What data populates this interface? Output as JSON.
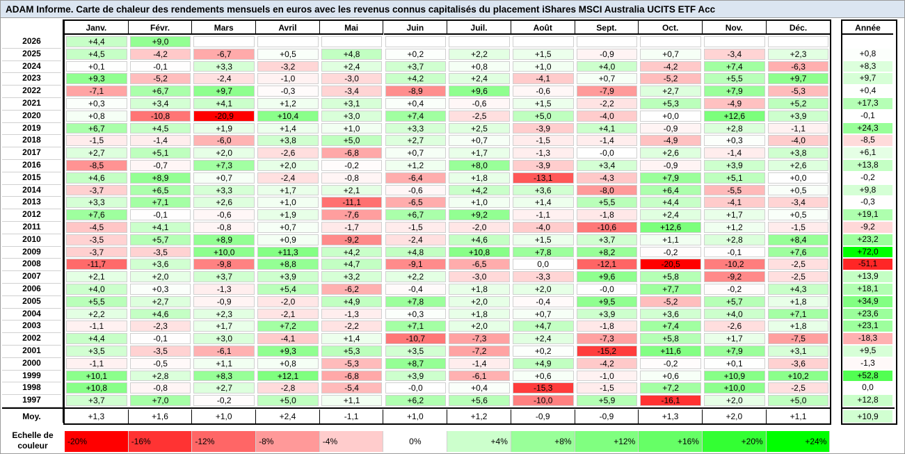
{
  "title": "ADAM Informe. Carte de chaleur des rendements mensuels en euros avec les revenus connus capitalisés du placement iShares MSCI Australia UCITS ETF Acc",
  "chart_data": {
    "type": "heatmap",
    "columns": [
      "Janv.",
      "Févr.",
      "Mars",
      "Avril",
      "Mai",
      "Juin",
      "Juil.",
      "Août",
      "Sept.",
      "Oct.",
      "Nov.",
      "Déc."
    ],
    "annual_header": "Année",
    "rows": [
      {
        "year": "2026",
        "months": [
          "+4,4",
          "+9,0",
          "",
          "",
          "",
          "",
          "",
          "",
          "",
          "",
          "",
          ""
        ],
        "annual": ""
      },
      {
        "year": "2025",
        "months": [
          "+4,5",
          "-4,2",
          "-6,7",
          "+0,5",
          "+4,8",
          "+0,2",
          "+2,2",
          "+1,5",
          "-0,9",
          "+0,7",
          "-3,4",
          "+2,3"
        ],
        "annual": "+0,8"
      },
      {
        "year": "2024",
        "months": [
          "+0,1",
          "-0,1",
          "+3,3",
          "-3,2",
          "+2,4",
          "+3,7",
          "+0,8",
          "+1,0",
          "+4,0",
          "-4,2",
          "+7,4",
          "-6,3"
        ],
        "annual": "+8,3"
      },
      {
        "year": "2023",
        "months": [
          "+9,3",
          "-5,2",
          "-2,4",
          "-1,0",
          "-3,0",
          "+4,2",
          "+2,4",
          "-4,1",
          "+0,7",
          "-5,2",
          "+5,5",
          "+9,7"
        ],
        "annual": "+9,7"
      },
      {
        "year": "2022",
        "months": [
          "-7,1",
          "+6,7",
          "+9,7",
          "-0,3",
          "-3,4",
          "-8,9",
          "+9,6",
          "-0,6",
          "-7,9",
          "+2,7",
          "+7,9",
          "-5,3"
        ],
        "annual": "+0,4"
      },
      {
        "year": "2021",
        "months": [
          "+0,3",
          "+3,4",
          "+4,1",
          "+1,2",
          "+3,1",
          "+0,4",
          "-0,6",
          "+1,5",
          "-2,2",
          "+5,3",
          "-4,9",
          "+5,2"
        ],
        "annual": "+17,3"
      },
      {
        "year": "2020",
        "months": [
          "+0,8",
          "-10,8",
          "-20,9",
          "+10,4",
          "+3,0",
          "+7,4",
          "-2,5",
          "+5,0",
          "-4,0",
          "+0,0",
          "+12,6",
          "+3,9"
        ],
        "annual": "-0,1"
      },
      {
        "year": "2019",
        "months": [
          "+6,7",
          "+4,5",
          "+1,9",
          "+1,4",
          "+1,0",
          "+3,3",
          "+2,5",
          "-3,9",
          "+4,1",
          "-0,9",
          "+2,8",
          "-1,1"
        ],
        "annual": "+24,3"
      },
      {
        "year": "2018",
        "months": [
          "-1,5",
          "-1,4",
          "-6,0",
          "+3,8",
          "+5,0",
          "+2,7",
          "+0,7",
          "-1,5",
          "-1,4",
          "-4,9",
          "+0,3",
          "-4,0"
        ],
        "annual": "-8,5"
      },
      {
        "year": "2017",
        "months": [
          "+2,7",
          "+5,1",
          "+2,0",
          "-2,6",
          "-6,8",
          "+0,7",
          "+1,7",
          "-1,3",
          "-0,0",
          "+2,6",
          "-1,4",
          "+3,8"
        ],
        "annual": "+6,1"
      },
      {
        "year": "2016",
        "months": [
          "-8,5",
          "-0,7",
          "+7,3",
          "+2,0",
          "-0,2",
          "+1,2",
          "+8,0",
          "-3,9",
          "+3,4",
          "-0,9",
          "+3,9",
          "+2,6"
        ],
        "annual": "+13,8"
      },
      {
        "year": "2015",
        "months": [
          "+4,6",
          "+8,9",
          "+0,7",
          "-2,4",
          "-0,8",
          "-6,4",
          "+1,8",
          "-13,1",
          "-4,3",
          "+7,9",
          "+5,1",
          "+0,0"
        ],
        "annual": "-0,2"
      },
      {
        "year": "2014",
        "months": [
          "-3,7",
          "+6,5",
          "+3,3",
          "+1,7",
          "+2,1",
          "-0,6",
          "+4,2",
          "+3,6",
          "-8,0",
          "+6,4",
          "-5,5",
          "+0,5"
        ],
        "annual": "+9,8"
      },
      {
        "year": "2013",
        "months": [
          "+3,3",
          "+7,1",
          "+2,6",
          "+1,0",
          "-11,1",
          "-6,5",
          "+1,0",
          "+1,4",
          "+5,5",
          "+4,4",
          "-4,1",
          "-3,4"
        ],
        "annual": "-0,3"
      },
      {
        "year": "2012",
        "months": [
          "+7,6",
          "-0,1",
          "-0,6",
          "+1,9",
          "-7,6",
          "+6,7",
          "+9,2",
          "-1,1",
          "-1,8",
          "+2,4",
          "+1,7",
          "+0,5"
        ],
        "annual": "+19,1"
      },
      {
        "year": "2011",
        "months": [
          "-4,5",
          "+4,1",
          "-0,8",
          "+0,7",
          "-1,7",
          "-1,5",
          "-2,0",
          "-4,0",
          "-10,6",
          "+12,6",
          "+1,2",
          "-1,5"
        ],
        "annual": "-9,2"
      },
      {
        "year": "2010",
        "months": [
          "-3,5",
          "+5,7",
          "+8,9",
          "+0,9",
          "-9,2",
          "-2,4",
          "+4,6",
          "+1,5",
          "+3,7",
          "+1,1",
          "+2,8",
          "+8,4"
        ],
        "annual": "+23,2"
      },
      {
        "year": "2009",
        "months": [
          "-3,7",
          "-3,5",
          "+10,0",
          "+11,3",
          "+4,2",
          "+4,8",
          "+10,8",
          "+7,8",
          "+8,2",
          "-0,2",
          "-0,1",
          "+7,6"
        ],
        "annual": "+72,0"
      },
      {
        "year": "2008",
        "months": [
          "-11,7",
          "+3,6",
          "-9,8",
          "+8,8",
          "+4,7",
          "-9,1",
          "-6,5",
          "0,0",
          "-12,1",
          "-20,5",
          "-10,2",
          "-2,5"
        ],
        "annual": "-51,1"
      },
      {
        "year": "2007",
        "months": [
          "+2,1",
          "+2,0",
          "+3,7",
          "+3,9",
          "+3,2",
          "+2,2",
          "-3,0",
          "-3,3",
          "+9,6",
          "+5,8",
          "-9,2",
          "-2,5"
        ],
        "annual": "+13,9"
      },
      {
        "year": "2006",
        "months": [
          "+4,0",
          "+0,3",
          "-1,3",
          "+5,4",
          "-6,2",
          "-0,4",
          "+1,8",
          "+2,0",
          "-0,0",
          "+7,7",
          "-0,2",
          "+4,3"
        ],
        "annual": "+18,1"
      },
      {
        "year": "2005",
        "months": [
          "+5,5",
          "+2,7",
          "-0,9",
          "-2,0",
          "+4,9",
          "+7,8",
          "+2,0",
          "-0,4",
          "+9,5",
          "-5,2",
          "+5,7",
          "+1,8"
        ],
        "annual": "+34,9"
      },
      {
        "year": "2004",
        "months": [
          "+2,2",
          "+4,6",
          "+2,3",
          "-2,1",
          "-1,3",
          "+0,3",
          "+1,8",
          "+0,7",
          "+3,9",
          "+3,6",
          "+4,0",
          "+7,1"
        ],
        "annual": "+23,6"
      },
      {
        "year": "2003",
        "months": [
          "-1,1",
          "-2,3",
          "+1,7",
          "+7,2",
          "-2,2",
          "+7,1",
          "+2,0",
          "+4,7",
          "-1,8",
          "+7,4",
          "-2,6",
          "+1,8"
        ],
        "annual": "+23,1"
      },
      {
        "year": "2002",
        "months": [
          "+4,4",
          "-0,1",
          "+3,0",
          "-4,1",
          "+1,4",
          "-10,7",
          "-7,3",
          "+2,4",
          "-7,3",
          "+5,8",
          "+1,7",
          "-7,5"
        ],
        "annual": "-18,3"
      },
      {
        "year": "2001",
        "months": [
          "+3,5",
          "-3,5",
          "-6,1",
          "+9,3",
          "+5,3",
          "+3,5",
          "-7,2",
          "+0,2",
          "-15,2",
          "+11,6",
          "+7,9",
          "+3,1"
        ],
        "annual": "+9,5"
      },
      {
        "year": "2000",
        "months": [
          "-1,1",
          "-0,5",
          "+1,1",
          "+0,8",
          "-5,3",
          "+8,7",
          "-1,4",
          "+4,9",
          "-4,2",
          "-0,2",
          "+0,1",
          "-3,6"
        ],
        "annual": "-1,3"
      },
      {
        "year": "1999",
        "months": [
          "+10,1",
          "+2,8",
          "+8,3",
          "+12,1",
          "-6,8",
          "+3,9",
          "-6,1",
          "+0,6",
          "-1,0",
          "+0,6",
          "+10,9",
          "+10,2"
        ],
        "annual": "+52,8"
      },
      {
        "year": "1998",
        "months": [
          "+10,8",
          "-0,8",
          "+2,7",
          "-2,8",
          "-5,4",
          "-0,0",
          "+0,4",
          "-15,3",
          "-1,5",
          "+7,2",
          "+10,0",
          "-2,5"
        ],
        "annual": "0,0"
      },
      {
        "year": "1997",
        "months": [
          "+3,7",
          "+7,0",
          "-0,2",
          "+5,0",
          "+1,1",
          "+6,2",
          "+5,6",
          "-10,0",
          "+5,9",
          "-16,1",
          "+2,0",
          "+5,0"
        ],
        "annual": "+12,8"
      }
    ],
    "average_row": {
      "label": "Moy.",
      "months": [
        "+1,3",
        "+1,6",
        "+1,0",
        "+2,4",
        "-1,1",
        "+1,0",
        "+1,2",
        "-0,9",
        "-0,9",
        "+1,3",
        "+2,0",
        "+1,1"
      ],
      "annual": "+10,9"
    },
    "color_scale": {
      "label": "Echelle de couleur",
      "steps": [
        {
          "label": "-20%",
          "value": -20,
          "color": "#ff0000"
        },
        {
          "label": "-16%",
          "value": -16,
          "color": "#ff3333"
        },
        {
          "label": "-12%",
          "value": -12,
          "color": "#ff6666"
        },
        {
          "label": "-8%",
          "value": -8,
          "color": "#ff9999"
        },
        {
          "label": "-4%",
          "value": -4,
          "color": "#ffcccc"
        },
        {
          "label": "0%",
          "value": 0,
          "color": "#ffffff"
        },
        {
          "label": "+4%",
          "value": 4,
          "color": "#ccffcc"
        },
        {
          "label": "+8%",
          "value": 8,
          "color": "#99ff99"
        },
        {
          "label": "+12%",
          "value": 12,
          "color": "#80ff80"
        },
        {
          "label": "+16%",
          "value": 16,
          "color": "#66ff66"
        },
        {
          "label": "+20%",
          "value": 20,
          "color": "#33ff33"
        },
        {
          "label": "+24%",
          "value": 24,
          "color": "#00ff00"
        }
      ]
    }
  }
}
